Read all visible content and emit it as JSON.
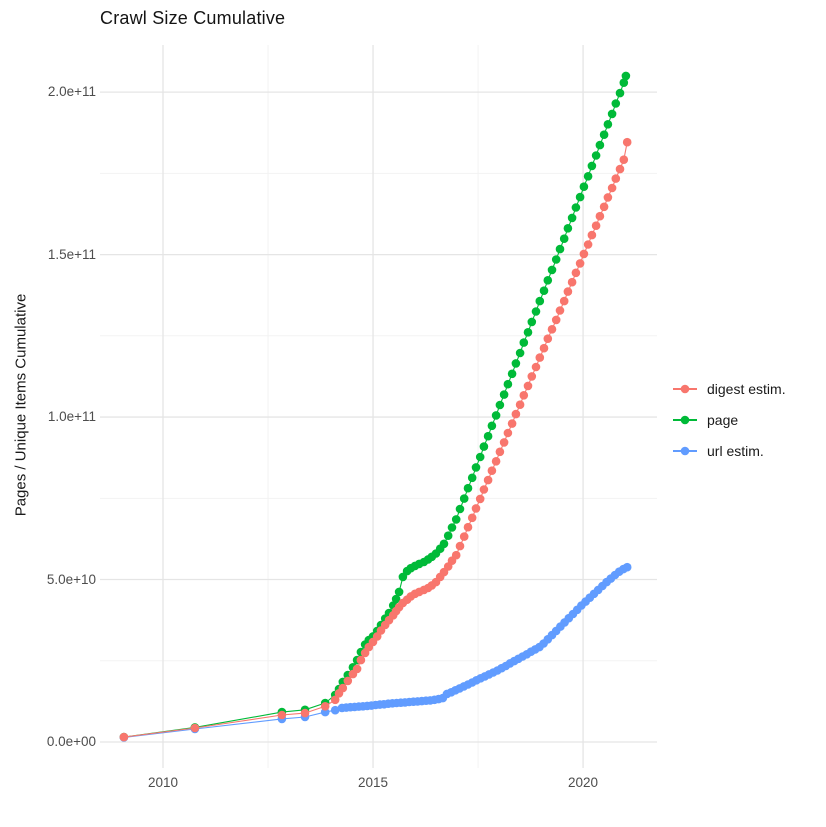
{
  "chart_data": {
    "type": "scatter",
    "title": "Crawl Size Cumulative",
    "ylabel": "Pages / Unique Items Cumulative",
    "xlabel": "",
    "units": "point values are [year, billions (1e9) of pages / unique items]",
    "grid": true,
    "legend_position": "right",
    "x_domain": [
      2008.5,
      2021.76
    ],
    "y_domain": [
      -8,
      214.5
    ],
    "x_ticks": [
      {
        "value": 2010,
        "label": "2010"
      },
      {
        "value": 2015,
        "label": "2015"
      },
      {
        "value": 2020,
        "label": "2020"
      }
    ],
    "y_ticks": [
      {
        "value": 0,
        "label": "0.0e+00"
      },
      {
        "value": 50,
        "label": "5.0e+10"
      },
      {
        "value": 100,
        "label": "1.0e+11"
      },
      {
        "value": 150,
        "label": "1.5e+11"
      },
      {
        "value": 200,
        "label": "2.0e+11"
      }
    ],
    "x_minor": [
      2012.5,
      2017.5
    ],
    "y_minor": [
      25,
      75,
      125,
      175
    ],
    "draw_order": [
      1,
      2,
      0
    ],
    "series": [
      {
        "name": "digest estim.",
        "color": "#F8766D",
        "points": [
          [
            2009.07,
            1.5
          ],
          [
            2010.76,
            4.3
          ],
          [
            2012.83,
            8.3
          ],
          [
            2013.38,
            8.9
          ],
          [
            2013.86,
            11.0
          ],
          [
            2014.1,
            13.0
          ],
          [
            2014.19,
            15.0
          ],
          [
            2014.28,
            16.6
          ],
          [
            2014.4,
            18.8
          ],
          [
            2014.52,
            20.9
          ],
          [
            2014.62,
            22.5
          ],
          [
            2014.71,
            25.2
          ],
          [
            2014.81,
            27.4
          ],
          [
            2014.9,
            29.2
          ],
          [
            2015.0,
            30.8
          ],
          [
            2015.1,
            32.5
          ],
          [
            2015.19,
            34.3
          ],
          [
            2015.29,
            36.0
          ],
          [
            2015.38,
            37.5
          ],
          [
            2015.48,
            39.0
          ],
          [
            2015.55,
            40.3
          ],
          [
            2015.62,
            41.5
          ],
          [
            2015.71,
            42.8
          ],
          [
            2015.81,
            43.8
          ],
          [
            2015.9,
            44.8
          ],
          [
            2016.0,
            45.6
          ],
          [
            2016.1,
            46.2
          ],
          [
            2016.21,
            46.8
          ],
          [
            2016.31,
            47.4
          ],
          [
            2016.4,
            48.2
          ],
          [
            2016.5,
            49.2
          ],
          [
            2016.6,
            50.8
          ],
          [
            2016.69,
            52.3
          ],
          [
            2016.79,
            54.0
          ],
          [
            2016.88,
            55.8
          ],
          [
            2016.98,
            57.5
          ],
          [
            2017.07,
            60.3
          ],
          [
            2017.17,
            63.2
          ],
          [
            2017.26,
            66.1
          ],
          [
            2017.36,
            69.0
          ],
          [
            2017.45,
            71.9
          ],
          [
            2017.55,
            74.8
          ],
          [
            2017.64,
            77.7
          ],
          [
            2017.74,
            80.6
          ],
          [
            2017.83,
            83.5
          ],
          [
            2017.93,
            86.4
          ],
          [
            2018.02,
            89.3
          ],
          [
            2018.12,
            92.2
          ],
          [
            2018.21,
            95.1
          ],
          [
            2018.31,
            98.0
          ],
          [
            2018.4,
            100.9
          ],
          [
            2018.5,
            103.8
          ],
          [
            2018.59,
            106.7
          ],
          [
            2018.69,
            109.6
          ],
          [
            2018.78,
            112.5
          ],
          [
            2018.88,
            115.4
          ],
          [
            2018.97,
            118.3
          ],
          [
            2019.07,
            121.2
          ],
          [
            2019.16,
            124.1
          ],
          [
            2019.26,
            127.0
          ],
          [
            2019.36,
            129.9
          ],
          [
            2019.45,
            132.8
          ],
          [
            2019.55,
            135.7
          ],
          [
            2019.64,
            138.6
          ],
          [
            2019.74,
            141.5
          ],
          [
            2019.83,
            144.4
          ],
          [
            2019.93,
            147.3
          ],
          [
            2020.02,
            150.2
          ],
          [
            2020.12,
            153.1
          ],
          [
            2020.21,
            156.0
          ],
          [
            2020.31,
            158.9
          ],
          [
            2020.4,
            161.8
          ],
          [
            2020.5,
            164.7
          ],
          [
            2020.59,
            167.6
          ],
          [
            2020.69,
            170.5
          ],
          [
            2020.78,
            173.4
          ],
          [
            2020.88,
            176.3
          ],
          [
            2020.97,
            179.2
          ],
          [
            2021.05,
            184.6
          ]
        ]
      },
      {
        "name": "page",
        "color": "#00BA38",
        "points": [
          [
            2009.07,
            1.5
          ],
          [
            2010.76,
            4.5
          ],
          [
            2012.83,
            9.2
          ],
          [
            2013.38,
            9.9
          ],
          [
            2013.86,
            12.0
          ],
          [
            2014.1,
            14.5
          ],
          [
            2014.19,
            16.3
          ],
          [
            2014.28,
            18.5
          ],
          [
            2014.4,
            20.6
          ],
          [
            2014.52,
            23.0
          ],
          [
            2014.62,
            25.2
          ],
          [
            2014.71,
            27.7
          ],
          [
            2014.81,
            30.0
          ],
          [
            2014.9,
            31.4
          ],
          [
            2015.0,
            32.5
          ],
          [
            2015.1,
            34.2
          ],
          [
            2015.19,
            36.0
          ],
          [
            2015.29,
            38.0
          ],
          [
            2015.38,
            39.7
          ],
          [
            2015.48,
            42.0
          ],
          [
            2015.55,
            44.0
          ],
          [
            2015.62,
            46.2
          ],
          [
            2015.71,
            50.8
          ],
          [
            2015.81,
            52.6
          ],
          [
            2015.9,
            53.5
          ],
          [
            2016.0,
            54.2
          ],
          [
            2016.1,
            54.8
          ],
          [
            2016.21,
            55.4
          ],
          [
            2016.31,
            56.2
          ],
          [
            2016.4,
            57.0
          ],
          [
            2016.5,
            58.0
          ],
          [
            2016.6,
            59.5
          ],
          [
            2016.69,
            61.0
          ],
          [
            2016.79,
            63.5
          ],
          [
            2016.88,
            66.0
          ],
          [
            2016.98,
            68.5
          ],
          [
            2017.07,
            71.7
          ],
          [
            2017.17,
            74.9
          ],
          [
            2017.26,
            78.1
          ],
          [
            2017.36,
            81.3
          ],
          [
            2017.45,
            84.5
          ],
          [
            2017.55,
            87.7
          ],
          [
            2017.64,
            90.9
          ],
          [
            2017.74,
            94.1
          ],
          [
            2017.83,
            97.3
          ],
          [
            2017.93,
            100.5
          ],
          [
            2018.02,
            103.7
          ],
          [
            2018.12,
            106.9
          ],
          [
            2018.21,
            110.1
          ],
          [
            2018.31,
            113.3
          ],
          [
            2018.4,
            116.5
          ],
          [
            2018.5,
            119.7
          ],
          [
            2018.59,
            122.9
          ],
          [
            2018.69,
            126.1
          ],
          [
            2018.78,
            129.3
          ],
          [
            2018.88,
            132.5
          ],
          [
            2018.97,
            135.7
          ],
          [
            2019.07,
            138.9
          ],
          [
            2019.16,
            142.1
          ],
          [
            2019.26,
            145.3
          ],
          [
            2019.36,
            148.5
          ],
          [
            2019.45,
            151.7
          ],
          [
            2019.55,
            154.9
          ],
          [
            2019.64,
            158.1
          ],
          [
            2019.74,
            161.3
          ],
          [
            2019.83,
            164.5
          ],
          [
            2019.93,
            167.7
          ],
          [
            2020.02,
            170.9
          ],
          [
            2020.12,
            174.1
          ],
          [
            2020.21,
            177.3
          ],
          [
            2020.31,
            180.5
          ],
          [
            2020.4,
            183.7
          ],
          [
            2020.5,
            186.9
          ],
          [
            2020.59,
            190.1
          ],
          [
            2020.69,
            193.3
          ],
          [
            2020.78,
            196.5
          ],
          [
            2020.88,
            199.7
          ],
          [
            2020.97,
            202.9
          ],
          [
            2021.02,
            205.0
          ]
        ]
      },
      {
        "name": "url estim.",
        "color": "#619CFF",
        "points": [
          [
            2009.07,
            1.4
          ],
          [
            2010.76,
            4.0
          ],
          [
            2012.83,
            7.1
          ],
          [
            2013.38,
            7.7
          ],
          [
            2013.86,
            9.2
          ],
          [
            2014.1,
            9.8
          ],
          [
            2014.26,
            10.5
          ],
          [
            2014.36,
            10.6
          ],
          [
            2014.46,
            10.7
          ],
          [
            2014.56,
            10.8
          ],
          [
            2014.66,
            10.9
          ],
          [
            2014.76,
            11.0
          ],
          [
            2014.86,
            11.1
          ],
          [
            2014.96,
            11.2
          ],
          [
            2015.06,
            11.4
          ],
          [
            2015.16,
            11.5
          ],
          [
            2015.26,
            11.6
          ],
          [
            2015.36,
            11.8
          ],
          [
            2015.46,
            11.9
          ],
          [
            2015.56,
            12.0
          ],
          [
            2015.66,
            12.1
          ],
          [
            2015.76,
            12.2
          ],
          [
            2015.86,
            12.3
          ],
          [
            2015.96,
            12.4
          ],
          [
            2016.06,
            12.5
          ],
          [
            2016.16,
            12.6
          ],
          [
            2016.26,
            12.7
          ],
          [
            2016.36,
            12.8
          ],
          [
            2016.46,
            13.0
          ],
          [
            2016.56,
            13.2
          ],
          [
            2016.66,
            13.5
          ],
          [
            2016.76,
            14.8
          ],
          [
            2016.86,
            15.3
          ],
          [
            2016.96,
            15.9
          ],
          [
            2017.06,
            16.5
          ],
          [
            2017.16,
            17.1
          ],
          [
            2017.26,
            17.7
          ],
          [
            2017.36,
            18.3
          ],
          [
            2017.46,
            19.0
          ],
          [
            2017.56,
            19.6
          ],
          [
            2017.66,
            20.2
          ],
          [
            2017.76,
            20.8
          ],
          [
            2017.86,
            21.4
          ],
          [
            2017.96,
            22.0
          ],
          [
            2018.06,
            22.7
          ],
          [
            2018.16,
            23.4
          ],
          [
            2018.26,
            24.2
          ],
          [
            2018.36,
            24.9
          ],
          [
            2018.46,
            25.6
          ],
          [
            2018.56,
            26.3
          ],
          [
            2018.66,
            27.0
          ],
          [
            2018.76,
            27.8
          ],
          [
            2018.86,
            28.5
          ],
          [
            2018.96,
            29.2
          ],
          [
            2019.06,
            30.3
          ],
          [
            2019.16,
            31.6
          ],
          [
            2019.26,
            32.9
          ],
          [
            2019.36,
            34.2
          ],
          [
            2019.46,
            35.5
          ],
          [
            2019.56,
            36.8
          ],
          [
            2019.66,
            38.1
          ],
          [
            2019.76,
            39.4
          ],
          [
            2019.86,
            40.7
          ],
          [
            2019.96,
            42.0
          ],
          [
            2020.06,
            43.2
          ],
          [
            2020.16,
            44.4
          ],
          [
            2020.26,
            45.6
          ],
          [
            2020.36,
            46.8
          ],
          [
            2020.46,
            48.0
          ],
          [
            2020.56,
            49.2
          ],
          [
            2020.66,
            50.3
          ],
          [
            2020.76,
            51.4
          ],
          [
            2020.86,
            52.4
          ],
          [
            2020.96,
            53.2
          ],
          [
            2021.05,
            53.8
          ]
        ]
      }
    ],
    "style": {
      "grid_major_color": "#e5e5e5",
      "grid_minor_color": "#f1f1f1",
      "background": "#ffffff",
      "point_radius": 4.3
    }
  }
}
